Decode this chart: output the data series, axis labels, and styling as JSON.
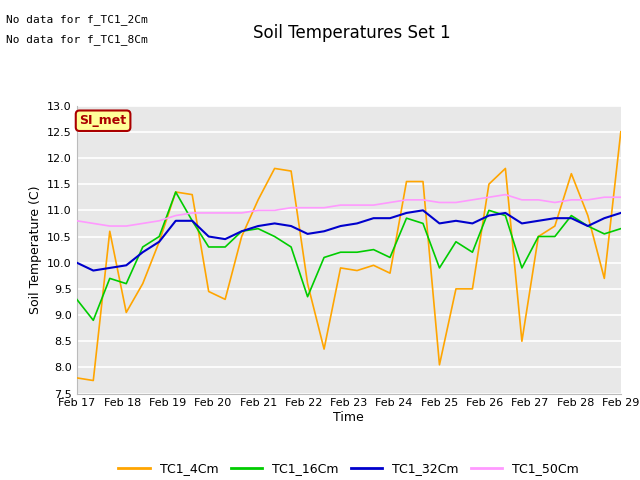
{
  "title": "Soil Temperatures Set 1",
  "ylabel": "Soil Temperature (C)",
  "xlabel": "Time",
  "ylim": [
    7.5,
    13.0
  ],
  "yticks": [
    7.5,
    8.0,
    8.5,
    9.0,
    9.5,
    10.0,
    10.5,
    11.0,
    11.5,
    12.0,
    12.5,
    13.0
  ],
  "colors": {
    "TC1_4Cm": "#FFA500",
    "TC1_16Cm": "#00CC00",
    "TC1_32Cm": "#0000CC",
    "TC1_50Cm": "#FF99FF"
  },
  "no_data_text": [
    "No data for f_TC1_2Cm",
    "No data for f_TC1_8Cm"
  ],
  "legend_box_text": "SI_met",
  "legend_box_bg": "#FFFF99",
  "legend_box_border": "#AA0000",
  "background_color": "#E8E8E8",
  "xtick_labels": [
    "Feb 17",
    "Feb 18",
    "Feb 19",
    "Feb 20",
    "Feb 21",
    "Feb 22",
    "Feb 23",
    "Feb 24",
    "Feb 25",
    "Feb 26",
    "Feb 27",
    "Feb 28",
    "Feb 29"
  ],
  "TC1_4Cm": [
    7.8,
    7.75,
    10.6,
    9.05,
    9.6,
    10.4,
    11.35,
    11.3,
    9.45,
    9.3,
    10.5,
    11.2,
    11.8,
    11.75,
    9.6,
    8.35,
    9.9,
    9.85,
    9.95,
    9.8,
    11.55,
    11.55,
    8.05,
    9.5,
    9.5,
    11.5,
    11.8,
    8.5,
    10.5,
    10.7,
    11.7,
    10.9,
    9.7,
    12.5
  ],
  "TC1_16Cm": [
    9.3,
    8.9,
    9.7,
    9.6,
    10.3,
    10.5,
    11.35,
    10.8,
    10.3,
    10.3,
    10.6,
    10.65,
    10.5,
    10.3,
    9.35,
    10.1,
    10.2,
    10.2,
    10.25,
    10.1,
    10.85,
    10.75,
    9.9,
    10.4,
    10.2,
    11.0,
    10.9,
    9.9,
    10.5,
    10.5,
    10.9,
    10.7,
    10.55,
    10.65
  ],
  "TC1_32Cm": [
    10.0,
    9.85,
    9.9,
    9.95,
    10.2,
    10.4,
    10.8,
    10.8,
    10.5,
    10.45,
    10.6,
    10.7,
    10.75,
    10.7,
    10.55,
    10.6,
    10.7,
    10.75,
    10.85,
    10.85,
    10.95,
    11.0,
    10.75,
    10.8,
    10.75,
    10.9,
    10.95,
    10.75,
    10.8,
    10.85,
    10.85,
    10.7,
    10.85,
    10.95
  ],
  "TC1_50Cm": [
    10.8,
    10.75,
    10.7,
    10.7,
    10.75,
    10.8,
    10.9,
    10.95,
    10.95,
    10.95,
    10.95,
    11.0,
    11.0,
    11.05,
    11.05,
    11.05,
    11.1,
    11.1,
    11.1,
    11.15,
    11.2,
    11.2,
    11.15,
    11.15,
    11.2,
    11.25,
    11.3,
    11.2,
    11.2,
    11.15,
    11.2,
    11.2,
    11.25,
    11.25
  ]
}
